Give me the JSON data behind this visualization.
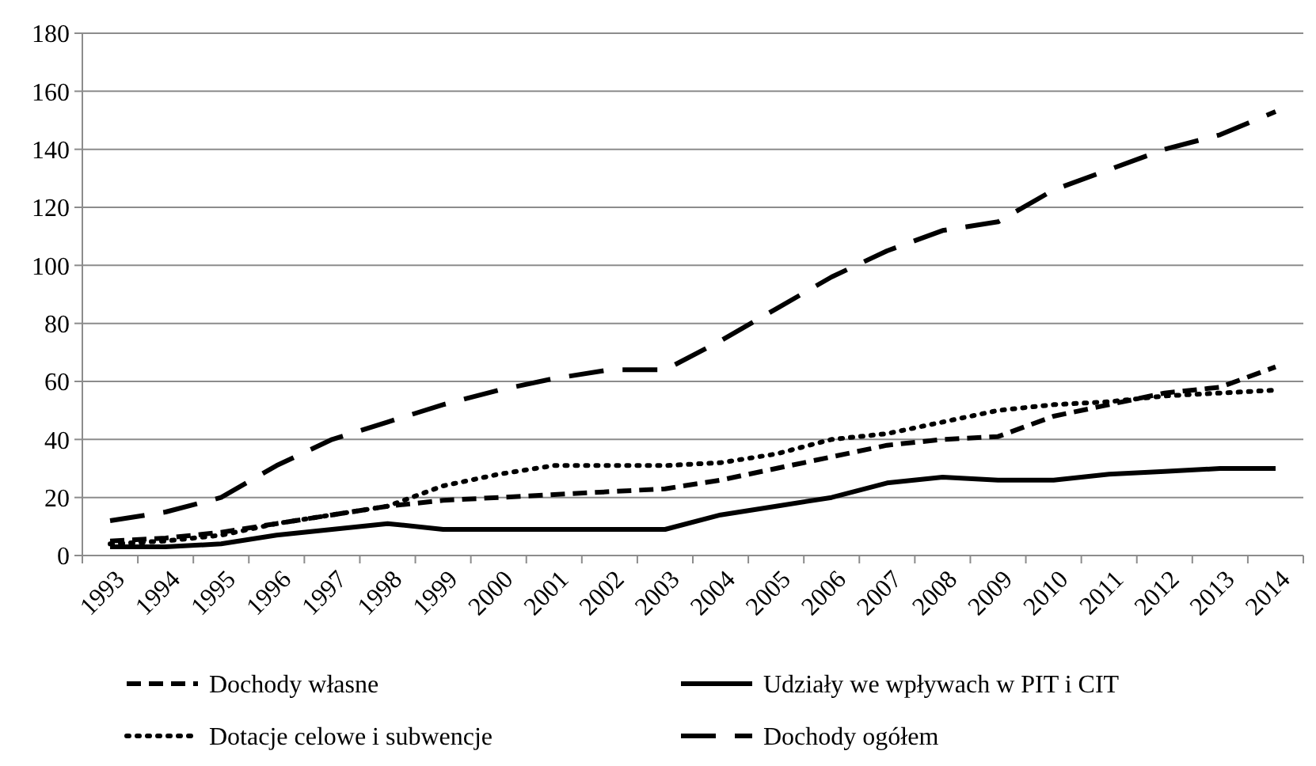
{
  "chart_data": {
    "type": "line",
    "categories": [
      "1993",
      "1994",
      "1995",
      "1996",
      "1997",
      "1998",
      "1999",
      "2000",
      "2001",
      "2002",
      "2003",
      "2004",
      "2005",
      "2006",
      "2007",
      "2008",
      "2009",
      "2010",
      "2011",
      "2012",
      "2013",
      "2014"
    ],
    "series": [
      {
        "name": "Dochody własne",
        "color": "#000000",
        "line_style": "dashed",
        "values": [
          5,
          6,
          8,
          11,
          14,
          17,
          19,
          20,
          21,
          22,
          23,
          26,
          30,
          34,
          38,
          40,
          41,
          48,
          52,
          56,
          58,
          65
        ]
      },
      {
        "name": "Udziały we wpływach w PIT i CIT",
        "color": "#000000",
        "line_style": "solid",
        "values": [
          3,
          3,
          4,
          7,
          9,
          11,
          9,
          9,
          9,
          9,
          9,
          14,
          17,
          20,
          25,
          27,
          26,
          26,
          28,
          29,
          30,
          30
        ]
      },
      {
        "name": "Dotacje celowe i subwencje",
        "color": "#000000",
        "line_style": "dotted",
        "values": [
          4,
          5,
          7,
          11,
          14,
          17,
          24,
          28,
          31,
          31,
          31,
          32,
          35,
          40,
          42,
          46,
          50,
          52,
          53,
          55,
          56,
          57
        ]
      },
      {
        "name": "Dochody ogółem",
        "color": "#000000",
        "line_style": "longdash",
        "values": [
          12,
          15,
          20,
          31,
          40,
          46,
          52,
          57,
          61,
          64,
          64,
          74,
          85,
          96,
          105,
          112,
          115,
          126,
          133,
          140,
          145,
          153
        ]
      }
    ],
    "ylim": [
      0,
      180
    ],
    "yticks": [
      0,
      20,
      40,
      60,
      80,
      100,
      120,
      140,
      160,
      180
    ],
    "grid": "y",
    "legend": "bottom"
  }
}
